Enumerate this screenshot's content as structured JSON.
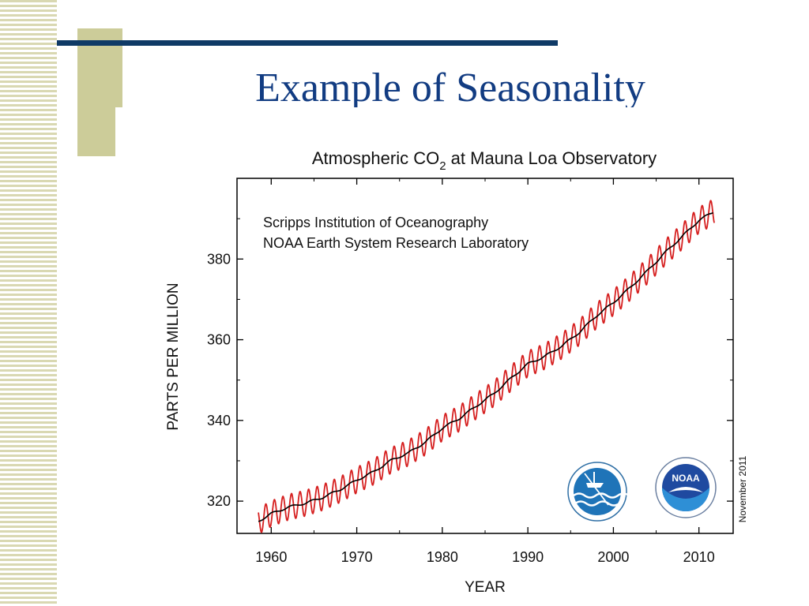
{
  "slide": {
    "title": "Example of Seasonality"
  },
  "chart_data": {
    "type": "line",
    "title": "Atmospheric CO",
    "title_subscript": "2",
    "title_suffix": " at Mauna Loa Observatory",
    "annotations": [
      "Scripps Institution of Oceanography",
      "NOAA Earth System Research Laboratory"
    ],
    "side_note": "November 2011",
    "xlabel": "YEAR",
    "ylabel": "PARTS PER MILLION",
    "xlim": [
      1956,
      2014
    ],
    "ylim": [
      312,
      400
    ],
    "xticks": [
      1960,
      1970,
      1980,
      1990,
      2000,
      2010
    ],
    "yticks": [
      320,
      340,
      360,
      380
    ],
    "grid": false,
    "logos": [
      "scripps-institution-of-oceanography-seal",
      "noaa-seal"
    ],
    "series": [
      {
        "color": "#d62020",
        "style": "monthly values, seasonal oscillation",
        "seasonal_amplitude": 3.2,
        "x": [
          1958.5,
          1960,
          1962,
          1964,
          1966,
          1968,
          1970,
          1972,
          1974,
          1976,
          1978,
          1980,
          1982,
          1984,
          1986,
          1988,
          1990,
          1992,
          1994,
          1996,
          1998,
          2000,
          2002,
          2004,
          2006,
          2008,
          2010,
          2011.8
        ],
        "y": [
          315.0,
          316.9,
          318.5,
          319.5,
          320.9,
          322.8,
          325.2,
          327.3,
          330.1,
          331.9,
          334.6,
          338.1,
          340.5,
          343.6,
          346.6,
          350.4,
          354.0,
          355.9,
          358.5,
          361.8,
          365.9,
          369.2,
          373.0,
          377.1,
          381.5,
          385.5,
          389.6,
          391.8
        ]
      },
      {
        "color": "#000000",
        "style": "seasonally adjusted trend",
        "x": [
          1958.5,
          1960,
          1962,
          1964,
          1966,
          1968,
          1970,
          1972,
          1974,
          1976,
          1978,
          1980,
          1982,
          1984,
          1986,
          1988,
          1990,
          1992,
          1994,
          1996,
          1998,
          2000,
          2002,
          2004,
          2006,
          2008,
          2010,
          2011.8
        ],
        "y": [
          315.0,
          316.9,
          318.5,
          319.5,
          320.9,
          322.8,
          325.2,
          327.3,
          330.1,
          331.9,
          334.6,
          338.1,
          340.5,
          343.6,
          346.6,
          350.4,
          354.0,
          355.9,
          358.5,
          361.8,
          365.9,
          369.2,
          373.0,
          377.1,
          381.5,
          385.5,
          389.6,
          391.8
        ]
      }
    ]
  }
}
